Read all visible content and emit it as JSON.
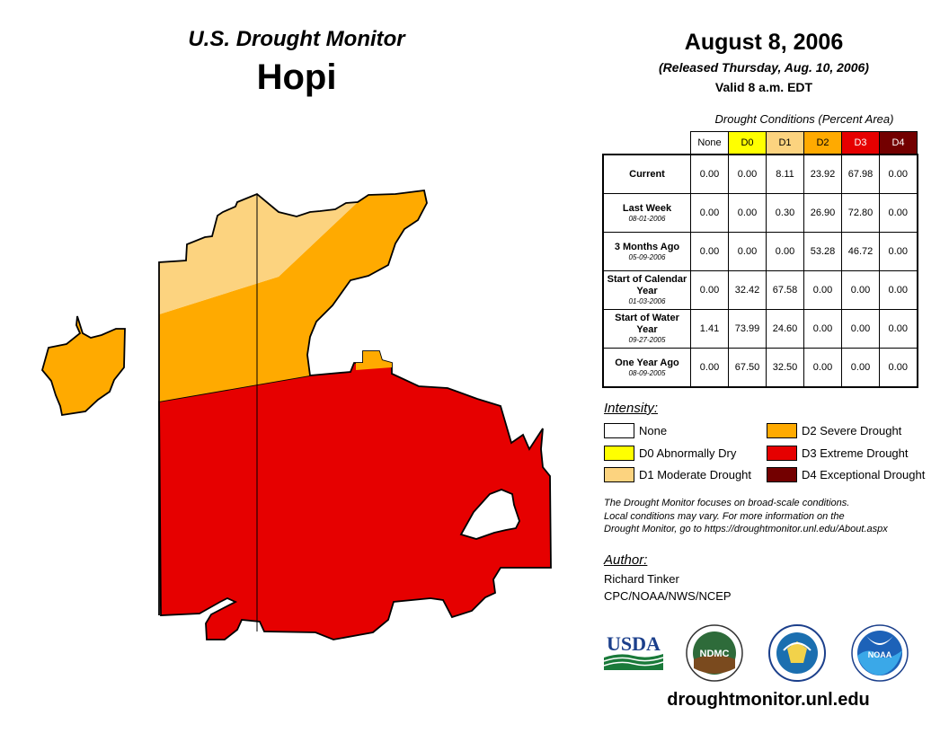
{
  "header": {
    "monitor_title": "U.S. Drought Monitor",
    "region_name": "Hopi",
    "date_title": "August 8, 2006",
    "released": "(Released Thursday, Aug. 10, 2006)",
    "valid": "Valid 8 a.m. EDT"
  },
  "conditions": {
    "caption": "Drought Conditions (Percent Area)",
    "columns": [
      {
        "label": "None",
        "color": "#ffffff",
        "text_color": "#000000"
      },
      {
        "label": "D0",
        "color": "#ffff00",
        "text_color": "#000000"
      },
      {
        "label": "D1",
        "color": "#fcd37f",
        "text_color": "#000000"
      },
      {
        "label": "D2",
        "color": "#ffaa00",
        "text_color": "#000000"
      },
      {
        "label": "D3",
        "color": "#e60000",
        "text_color": "#ffffff"
      },
      {
        "label": "D4",
        "color": "#730000",
        "text_color": "#ffffff"
      }
    ],
    "rows": [
      {
        "label": "Current",
        "date": "",
        "values": [
          "0.00",
          "0.00",
          "8.11",
          "23.92",
          "67.98",
          "0.00"
        ]
      },
      {
        "label": "Last Week",
        "date": "08-01-2006",
        "values": [
          "0.00",
          "0.00",
          "0.30",
          "26.90",
          "72.80",
          "0.00"
        ]
      },
      {
        "label": "3 Months Ago",
        "date": "05-09-2006",
        "values": [
          "0.00",
          "0.00",
          "0.00",
          "53.28",
          "46.72",
          "0.00"
        ]
      },
      {
        "label": "Start of Calendar Year",
        "date": "01-03-2006",
        "values": [
          "0.00",
          "32.42",
          "67.58",
          "0.00",
          "0.00",
          "0.00"
        ]
      },
      {
        "label": "Start of Water Year",
        "date": "09-27-2005",
        "values": [
          "1.41",
          "73.99",
          "24.60",
          "0.00",
          "0.00",
          "0.00"
        ]
      },
      {
        "label": "One Year Ago",
        "date": "08-09-2005",
        "values": [
          "0.00",
          "67.50",
          "32.50",
          "0.00",
          "0.00",
          "0.00"
        ]
      }
    ]
  },
  "legend": {
    "title": "Intensity:",
    "items": [
      {
        "label": "None",
        "color": "#ffffff"
      },
      {
        "label": "D0 Abnormally Dry",
        "color": "#ffff00"
      },
      {
        "label": "D1 Moderate Drought",
        "color": "#fcd37f"
      },
      {
        "label": "D2 Severe Drought",
        "color": "#ffaa00"
      },
      {
        "label": "D3 Extreme Drought",
        "color": "#e60000"
      },
      {
        "label": "D4 Exceptional Drought",
        "color": "#730000"
      }
    ]
  },
  "note": {
    "line1": "The Drought Monitor focuses on broad-scale conditions.",
    "line2": "Local conditions may vary. For more information on the",
    "line3": "Drought Monitor, go to https://droughtmonitor.unl.edu/About.aspx"
  },
  "author": {
    "title": "Author:",
    "name": "Richard Tinker",
    "org": "CPC/NOAA/NWS/NCEP"
  },
  "logos": {
    "usda": "USDA",
    "ndmc": "NDMC",
    "noaa": "NOAA"
  },
  "website": "droughtmonitor.unl.edu",
  "map_colors": {
    "d1": "#fcd37f",
    "d2": "#ffaa00",
    "d3": "#e60000",
    "outline": "#000000"
  }
}
